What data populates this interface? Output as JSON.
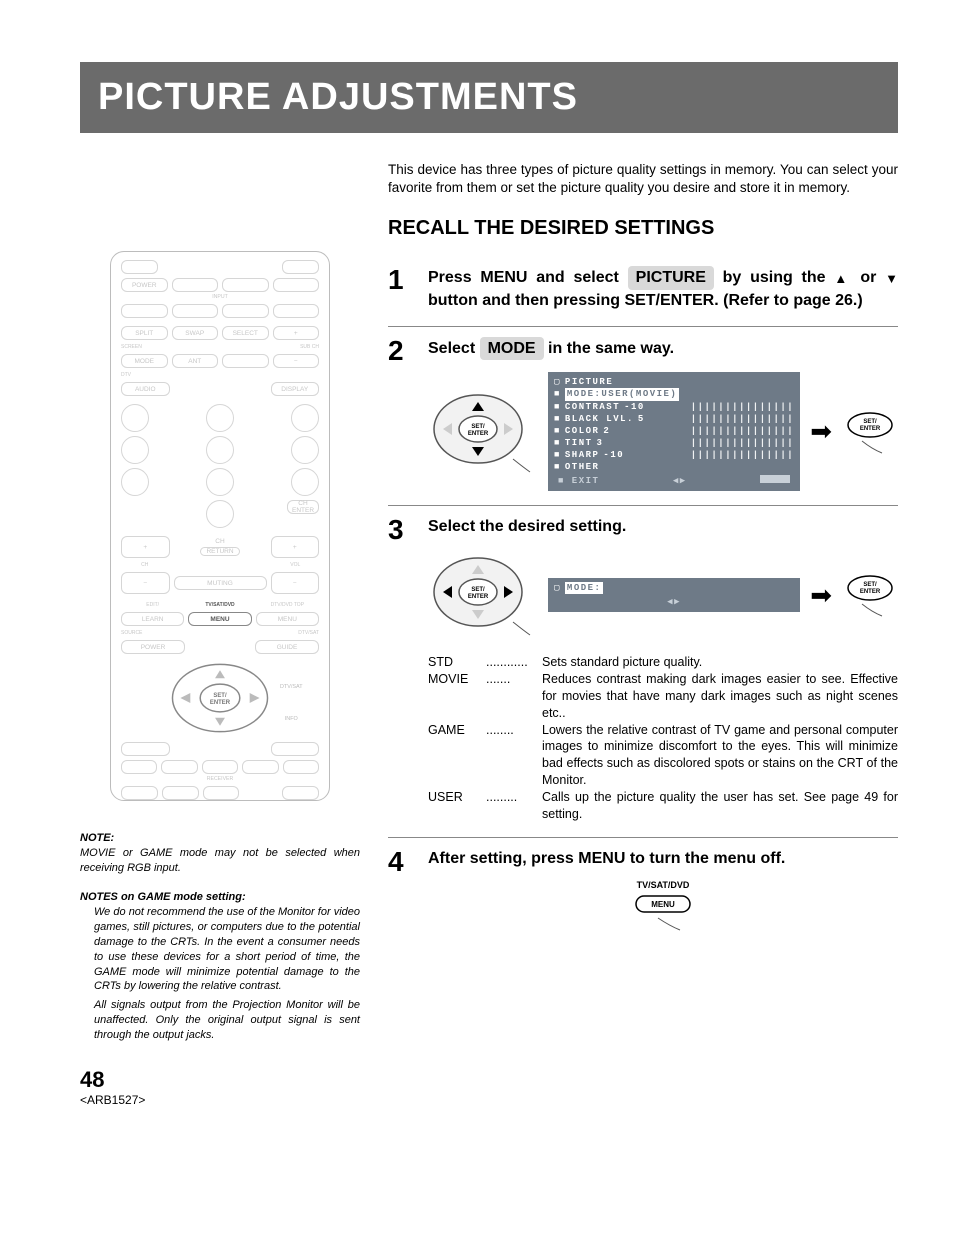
{
  "header": {
    "title": "PICTURE ADJUSTMENTS"
  },
  "intro": "This device has three types of picture quality settings in memory. You can select your favorite from them or set the picture quality you desire and store it in memory.",
  "section": {
    "title": "RECALL THE DESIRED SETTINGS"
  },
  "steps": {
    "1": {
      "num": "1",
      "pre": "Press MENU and select",
      "box": "PICTURE",
      "post1": "by using the",
      "post2": "or",
      "post3": "button and then pressing SET/ENTER. (Refer to page 26.)"
    },
    "2": {
      "num": "2",
      "pre": "Select",
      "box": "MODE",
      "post": "in the same way."
    },
    "3": {
      "num": "3",
      "title": "Select the desired setting."
    },
    "4": {
      "num": "4",
      "title": "After setting, press MENU to turn the menu off."
    }
  },
  "osd": {
    "title": "PICTURE",
    "rows": [
      {
        "label": "MODE:",
        "value": "USER(MOVIE)",
        "highlight": true,
        "bar": ""
      },
      {
        "label": "CONTRAST",
        "value": "-10",
        "bar": "|||||||||||||||"
      },
      {
        "label": "BLACK LVL.",
        "value": "5",
        "bar": "|||||||||||||||"
      },
      {
        "label": "COLOR",
        "value": "2",
        "bar": "|||||||||||||||"
      },
      {
        "label": "TINT",
        "value": "3",
        "bar": "|||||||||||||||"
      },
      {
        "label": "SHARP",
        "value": "-10",
        "bar": "|||||||||||||||"
      },
      {
        "label": "OTHER",
        "value": "",
        "bar": ""
      }
    ],
    "exit": "EXIT",
    "mode_only": "MODE:"
  },
  "dpad": {
    "center": "SET/\nENTER"
  },
  "set_enter_btn": "SET/\nENTER",
  "modes": [
    {
      "term": "STD",
      "dots": "............",
      "def": "Sets standard picture quality."
    },
    {
      "term": "MOVIE",
      "dots": ".......",
      "def": "Reduces contrast making dark images easier to see. Effective for movies that have many dark images such as night scenes etc.."
    },
    {
      "term": "GAME",
      "dots": "........",
      "def": "Lowers the relative contrast of TV game and personal computer images to minimize discomfort to the eyes. This will minimize bad effects such as discolored spots or stains on the CRT of the Monitor."
    },
    {
      "term": "USER",
      "dots": ".........",
      "def": "Calls up the picture quality the user has set. See page 49 for setting."
    }
  ],
  "menu_button": {
    "topLabel": "TV/SAT/DVD",
    "label": "MENU"
  },
  "remote": {
    "inputLabel": "INPUT",
    "buttons": {
      "power": "POWER",
      "split": "SPLIT",
      "swap": "SWAP",
      "select": "SELECT",
      "screen": "SCREEN",
      "subch": "SUB CH",
      "mode": "MODE",
      "ant": "ANT",
      "dtv": "DTV",
      "audio": "AUDIO",
      "display": "DISPLAY",
      "ch": "CH",
      "vol": "VOL",
      "return": "RETURN",
      "muting": "MUTING",
      "chEnter": "CH ENTER",
      "edit": "EDIT/",
      "tvsatdvd": "TV/SAT/DVD",
      "dtvdvdtop": "DTV/DVD TOP",
      "learn": "LEARN",
      "menu": "MENU",
      "menu2": "MENU",
      "source": "SOURCE",
      "dtvsat": "DTV/SAT",
      "power2": "POWER",
      "guide": "GUIDE",
      "setEnter": "SET/\nENTER",
      "info": "INFO",
      "receiver": "RECEIVER"
    }
  },
  "notes": {
    "note1_head": "NOTE:",
    "note1_body": "MOVIE or GAME mode may not be selected when receiving RGB input.",
    "note2_head": "NOTES on GAME mode setting:",
    "note2_p1": "We do not recommend the use of the Monitor for video games, still pictures, or computers due to the potential damage to the CRTs. In the event a consumer needs to use these devices for a short period of time, the GAME mode will minimize potential damage to the CRTs by lowering the relative contrast.",
    "note2_p2": "All signals output from the Projection Monitor will be unaffected. Only the original output signal is sent through the output jacks."
  },
  "footer": {
    "pageNumber": "48",
    "refCode": "<ARB1527>"
  },
  "styles": {
    "banner_bg": "#6b6b6b",
    "osd_bg": "#6e7a87",
    "boxed_bg": "#d9d9d9"
  }
}
